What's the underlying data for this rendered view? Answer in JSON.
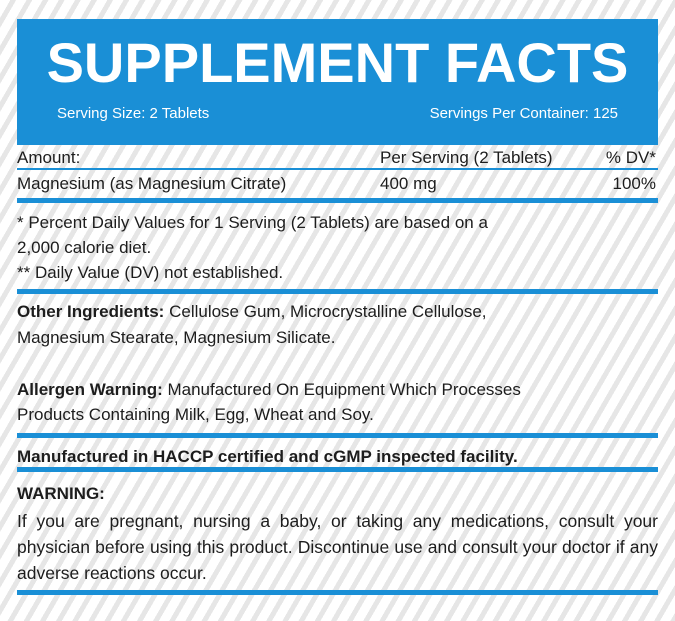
{
  "header": {
    "title": "SUPPLEMENT FACTS",
    "serving_size": "Serving Size: 2 Tablets",
    "servings_per_container": "Servings Per Container: 125",
    "color": "#1a8fd6"
  },
  "table": {
    "headers": {
      "amount": "Amount:",
      "per_serving": "Per Serving (2 Tablets)",
      "dv": "% DV*"
    },
    "rows": [
      {
        "name": "Magnesium (as Magnesium Citrate)",
        "amount": "400 mg",
        "dv": "100%"
      }
    ]
  },
  "footnotes": [
    "* Percent Daily Values for 1 Serving (2 Tablets) are based on a",
    "2,000 calorie diet.",
    "** Daily Value (DV) not established."
  ],
  "other_ingredients": {
    "label": "Other Ingredients:",
    "line1": " Cellulose Gum, Microcrystalline Cellulose,",
    "line2": "Magnesium Stearate, Magnesium Silicate."
  },
  "allergen": {
    "label": "Allergen Warning:",
    "line1": " Manufactured On Equipment Which Processes",
    "line2": "Products Containing Milk, Egg, Wheat and Soy."
  },
  "facility": "Manufactured in HACCP certified and cGMP inspected facility.",
  "warning": {
    "label": "WARNING:",
    "text": "If you are pregnant, nursing a baby, or taking any medications, consult your physician before using this product. Discontinue use and consult your doctor if any adverse reactions occur."
  }
}
